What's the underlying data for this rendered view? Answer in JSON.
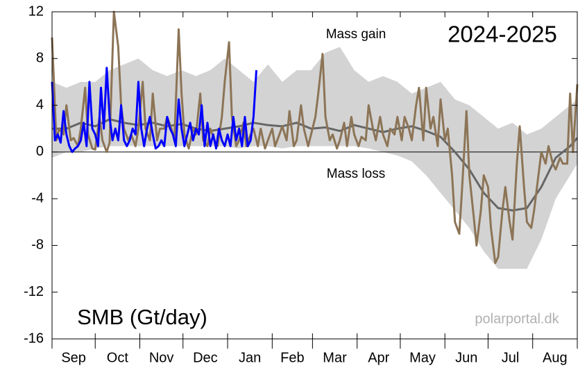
{
  "chart_data": {
    "type": "line",
    "title": "2024-2025",
    "ylabel": "SMB (Gt/day)",
    "annotations": [
      "Mass gain",
      "Mass loss"
    ],
    "source": "polarportal.dk",
    "categories": [
      "Sep",
      "Oct",
      "Nov",
      "Dec",
      "Jan",
      "Feb",
      "Mar",
      "Apr",
      "May",
      "Jun",
      "Jul",
      "Aug"
    ],
    "xlim": [
      0,
      365
    ],
    "xticks": [
      0,
      30,
      61,
      91,
      122,
      153,
      181,
      212,
      242,
      273,
      303,
      334,
      365
    ],
    "ylim": [
      -16,
      12
    ],
    "yticks": [
      12,
      8,
      4,
      0,
      -4,
      -8,
      -12,
      -16
    ],
    "band": {
      "color": "#d3d3d3",
      "x": [
        0,
        10,
        20,
        30,
        40,
        50,
        60,
        70,
        80,
        90,
        100,
        110,
        120,
        130,
        140,
        150,
        160,
        170,
        180,
        190,
        200,
        210,
        220,
        230,
        240,
        250,
        260,
        270,
        280,
        290,
        300,
        310,
        320,
        330,
        340,
        350,
        360,
        365
      ],
      "low": [
        -0.5,
        0,
        0,
        0.3,
        0.5,
        0.5,
        0.5,
        0.5,
        0.5,
        0.5,
        0.5,
        0.5,
        0.5,
        0.3,
        0.5,
        0.5,
        0.3,
        0.5,
        0.5,
        0.5,
        0.5,
        0.5,
        0.3,
        0,
        -0.3,
        -0.8,
        -2,
        -3.5,
        -5,
        -6.5,
        -8.5,
        -10,
        -10,
        -10,
        -7.5,
        -4,
        -2,
        -1
      ],
      "high": [
        6,
        5.5,
        6,
        6,
        7,
        7.5,
        8,
        7,
        6.5,
        7,
        6.5,
        7,
        8,
        7,
        6,
        7.5,
        6,
        7,
        7,
        8.5,
        9,
        7,
        6,
        6.5,
        6,
        5,
        5.5,
        6,
        4.5,
        4,
        3,
        2,
        2.5,
        1.5,
        2,
        3,
        4,
        4.5
      ]
    },
    "series": [
      {
        "color": "#666666",
        "x": [
          0,
          10,
          20,
          30,
          40,
          50,
          60,
          70,
          80,
          90,
          100,
          110,
          120,
          130,
          140,
          150,
          160,
          170,
          180,
          190,
          200,
          210,
          220,
          230,
          240,
          250,
          260,
          270,
          280,
          290,
          300,
          310,
          320,
          330,
          340,
          350,
          360,
          365
        ],
        "values": [
          2,
          2,
          2.5,
          2.2,
          2.8,
          2.5,
          2.3,
          2.5,
          2.2,
          2.4,
          2,
          1.8,
          2,
          2.2,
          2.5,
          2.3,
          2.2,
          2.5,
          2,
          2.1,
          1.8,
          2.3,
          2,
          1.7,
          2,
          2.2,
          1.8,
          1.3,
          0,
          -1.5,
          -3.5,
          -4.8,
          -5,
          -4.8,
          -3,
          -0.5,
          0.5,
          1.2
        ]
      },
      {
        "color": "#8c7456",
        "x": [
          0,
          3,
          5,
          8,
          10,
          13,
          15,
          18,
          20,
          23,
          25,
          28,
          30,
          33,
          35,
          38,
          40,
          43,
          46,
          48,
          50,
          53,
          55,
          58,
          60,
          63,
          65,
          68,
          70,
          73,
          75,
          78,
          80,
          83,
          85,
          88,
          90,
          92,
          95,
          98,
          100,
          103,
          105,
          108,
          110,
          113,
          115,
          118,
          120,
          123,
          125,
          128,
          130,
          133,
          135,
          138,
          140,
          143,
          145,
          148,
          150,
          153,
          155,
          158,
          160,
          163,
          165,
          168,
          170,
          173,
          175,
          178,
          180,
          183,
          185,
          188,
          190,
          193,
          195,
          198,
          200,
          203,
          205,
          208,
          210,
          213,
          215,
          218,
          220,
          223,
          225,
          228,
          230,
          233,
          235,
          238,
          240,
          243,
          245,
          248,
          250,
          253,
          255,
          258,
          260,
          263,
          265,
          268,
          270,
          273,
          275,
          278,
          280,
          283,
          285,
          288,
          290,
          293,
          295,
          298,
          300,
          303,
          305,
          308,
          310,
          313,
          315,
          318,
          320,
          323,
          325,
          328,
          330,
          333,
          335,
          338,
          340,
          343,
          345,
          348,
          350,
          353,
          355,
          358,
          360,
          362,
          365
        ],
        "values": [
          9.8,
          1,
          2,
          1.5,
          4,
          1,
          1.2,
          0.5,
          2,
          5.5,
          1.5,
          0.3,
          0.2,
          3,
          1,
          0,
          0.8,
          12,
          9,
          4,
          2,
          1,
          1.5,
          0.5,
          2,
          6,
          2,
          1,
          5,
          1,
          2,
          2,
          3,
          2,
          1,
          10.5,
          5,
          1.5,
          0.3,
          2,
          1.5,
          5,
          1,
          0.5,
          2,
          1,
          0.5,
          3,
          6,
          9.4,
          3,
          0.5,
          1,
          2.5,
          0.5,
          1.5,
          2,
          0.5,
          2,
          0.3,
          1,
          2,
          0.5,
          1.5,
          2.2,
          1,
          3.5,
          0.5,
          1,
          4,
          2,
          0.5,
          1.5,
          3,
          5,
          8.4,
          3,
          1,
          1.5,
          0.3,
          1,
          2.5,
          0.5,
          3,
          1.5,
          0.5,
          1.3,
          1,
          4,
          2,
          1,
          3,
          1.5,
          0.5,
          2,
          1.5,
          3,
          1,
          3,
          2,
          1,
          4,
          5.5,
          1,
          5.5,
          2,
          3,
          0.5,
          4.5,
          1,
          2,
          -2,
          -6,
          -7,
          -3,
          3.5,
          -2,
          -5.5,
          -8,
          -5,
          -2,
          -3,
          -6.5,
          -9.5,
          -9,
          -5,
          -3,
          -6,
          -7.5,
          -1,
          2.2,
          -3,
          -6,
          -6.5,
          -5,
          -2,
          0,
          -1,
          0.5,
          -1,
          -1.5,
          -0.5,
          -1,
          -1,
          5,
          0,
          5.8
        ]
      },
      {
        "color": "#0000ff",
        "x": [
          0,
          2,
          4,
          6,
          8,
          10,
          12,
          14,
          16,
          18,
          20,
          22,
          24,
          26,
          28,
          30,
          32,
          34,
          36,
          38,
          40,
          42,
          44,
          46,
          48,
          50,
          52,
          54,
          56,
          58,
          60,
          62,
          64,
          66,
          68,
          70,
          72,
          74,
          76,
          78,
          80,
          82,
          84,
          86,
          88,
          90,
          92,
          94,
          96,
          98,
          100,
          102,
          104,
          106,
          108,
          110,
          112,
          114,
          116,
          118,
          120,
          122,
          124,
          126,
          128,
          130,
          132,
          134,
          136,
          138,
          140,
          142
        ],
        "values": [
          6,
          1,
          1.5,
          0.8,
          3.5,
          1.5,
          0.5,
          0,
          0.3,
          0.5,
          1,
          2.5,
          0.5,
          6,
          2,
          1.5,
          0.5,
          5.5,
          2,
          7.2,
          3,
          1,
          2,
          1,
          4,
          1,
          0.5,
          1,
          2,
          1.5,
          6,
          2,
          0.5,
          2,
          3,
          1.5,
          0.3,
          0.5,
          1,
          0.5,
          3,
          2,
          1.5,
          0.5,
          4.5,
          2,
          0.5,
          1.5,
          2.5,
          1,
          2,
          1.5,
          4,
          0.5,
          2.5,
          0.5,
          1.5,
          0.3,
          2,
          1,
          0.5,
          1.5,
          0.5,
          3,
          1,
          2,
          0.5,
          3,
          0.5,
          1,
          3,
          7
        ]
      }
    ]
  }
}
